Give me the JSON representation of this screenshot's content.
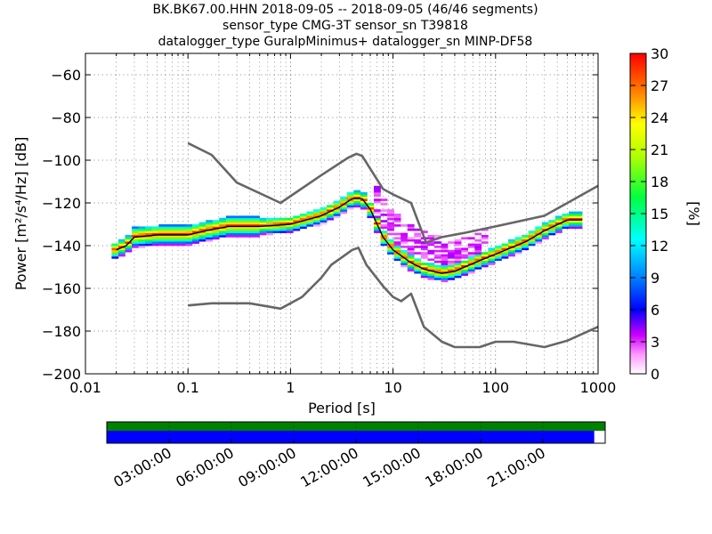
{
  "title": {
    "line1": "BK.BK67.00.HHN   2018-09-05 -- 2018-09-05  (46/46 segments)",
    "line2": "sensor_type CMG-3T sensor_sn T39818",
    "line3": "datalogger_type GuralpMinimus+ datalogger_sn MINP-DF58"
  },
  "chart_data": [
    {
      "type": "heatmap",
      "xlabel": "Period [s]",
      "ylabel": "Power [m²/s⁴/Hz] [dB]",
      "xscale": "log",
      "xlim": [
        0.01,
        1000
      ],
      "ylim": [
        -200,
        -50
      ],
      "xticks": [
        0.01,
        0.1,
        1,
        10,
        100,
        1000
      ],
      "xtick_labels": [
        "0.01",
        "0.1",
        "1",
        "10",
        "100",
        "1000"
      ],
      "yticks": [
        -200,
        -180,
        -160,
        -140,
        -120,
        -100,
        -80,
        -60
      ],
      "ytick_labels": [
        "−200",
        "−180",
        "−160",
        "−140",
        "−120",
        "−100",
        "−80",
        "−60"
      ],
      "grid": true,
      "colorbar": {
        "label": "[%]",
        "range": [
          0,
          30
        ],
        "ticks": [
          "0",
          "3",
          "6",
          "9",
          "12",
          "15",
          "18",
          "21",
          "24",
          "27",
          "30"
        ]
      },
      "series": [
        {
          "role": "noise-model-upper",
          "color": "#666666",
          "points": [
            [
              0.1,
              -92
            ],
            [
              0.17,
              -97.5
            ],
            [
              0.3,
              -110.5
            ],
            [
              0.8,
              -120
            ],
            [
              2.0,
              -107
            ],
            [
              3.6,
              -99
            ],
            [
              4.4,
              -97
            ],
            [
              5.0,
              -98
            ],
            [
              8.0,
              -113.5
            ],
            [
              10.0,
              -116
            ],
            [
              15.0,
              -120
            ],
            [
              21.0,
              -138.5
            ],
            [
              30.0,
              -136
            ],
            [
              50.0,
              -134
            ],
            [
              100.0,
              -131
            ],
            [
              300.0,
              -126
            ],
            [
              1000.0,
              -112
            ]
          ]
        },
        {
          "role": "noise-model-lower",
          "color": "#666666",
          "points": [
            [
              0.1,
              -168
            ],
            [
              0.17,
              -167
            ],
            [
              0.4,
              -167
            ],
            [
              0.8,
              -169.5
            ],
            [
              1.3,
              -164
            ],
            [
              2.0,
              -155
            ],
            [
              2.5,
              -149
            ],
            [
              4.0,
              -142
            ],
            [
              4.6,
              -141
            ],
            [
              5.5,
              -149
            ],
            [
              8.0,
              -159
            ],
            [
              10.0,
              -164
            ],
            [
              12.0,
              -166
            ],
            [
              15.0,
              -162.5
            ],
            [
              20.0,
              -178
            ],
            [
              30.0,
              -185
            ],
            [
              40.0,
              -187.5
            ],
            [
              70.0,
              -187.5
            ],
            [
              100.0,
              -185
            ],
            [
              150.0,
              -185
            ],
            [
              300.0,
              -187.5
            ],
            [
              500.0,
              -184.5
            ],
            [
              1000.0,
              -178
            ]
          ]
        },
        {
          "role": "mode",
          "color": "#000000",
          "points": [
            [
              0.02,
              -142
            ],
            [
              0.025,
              -140
            ],
            [
              0.03,
              -136
            ],
            [
              0.05,
              -135
            ],
            [
              0.1,
              -135
            ],
            [
              0.15,
              -133
            ],
            [
              0.25,
              -131
            ],
            [
              0.5,
              -131
            ],
            [
              1.0,
              -130
            ],
            [
              2.0,
              -126
            ],
            [
              3.0,
              -122
            ],
            [
              4.0,
              -118
            ],
            [
              5.0,
              -118
            ],
            [
              6.0,
              -123
            ],
            [
              7.0,
              -130
            ],
            [
              8.0,
              -136
            ],
            [
              10.0,
              -142
            ],
            [
              15.0,
              -148
            ],
            [
              20.0,
              -151
            ],
            [
              30.0,
              -153
            ],
            [
              40.0,
              -152
            ],
            [
              70.0,
              -147
            ],
            [
              100.0,
              -144
            ],
            [
              200.0,
              -138
            ],
            [
              300.0,
              -133
            ],
            [
              500.0,
              -128
            ],
            [
              700.0,
              -128
            ]
          ]
        }
      ]
    },
    {
      "type": "timeline",
      "xtick_labels": [
        "03:00:00",
        "06:00:00",
        "09:00:00",
        "12:00:00",
        "15:00:00",
        "18:00:00",
        "21:00:00"
      ],
      "bars": [
        {
          "role": "data-availability",
          "color": "#008000",
          "coverage": 1.0
        },
        {
          "role": "psd-segments-used",
          "color": "#0000ff",
          "coverage": 0.978
        }
      ]
    }
  ]
}
